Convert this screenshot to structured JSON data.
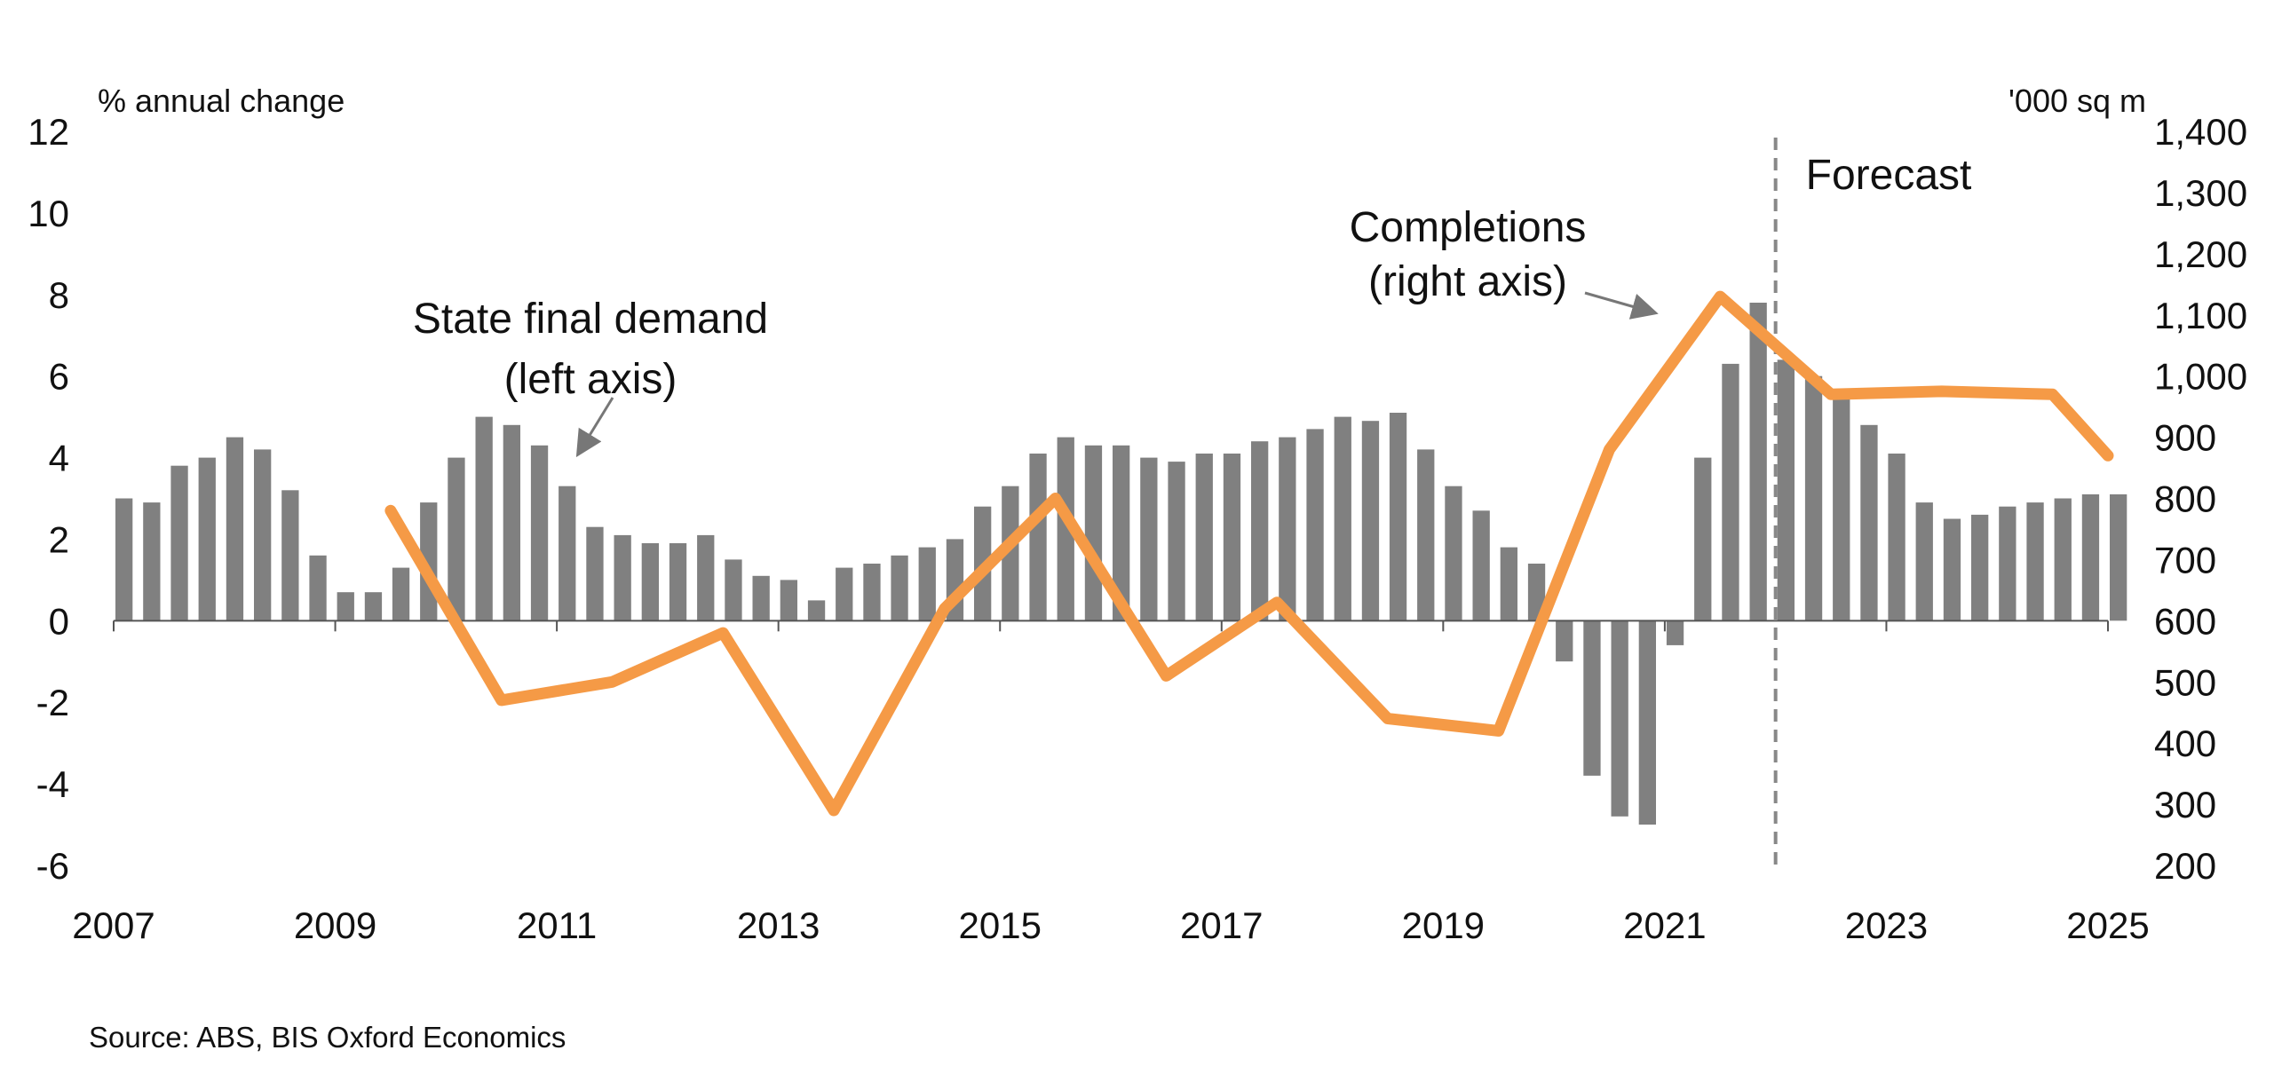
{
  "chart_data": {
    "type": "bar",
    "left_axis_label": "% annual change",
    "right_axis_label": "'000 sq m",
    "y_left": {
      "min": -6,
      "max": 12,
      "ticks": [
        "12",
        "10",
        "8",
        "6",
        "4",
        "2",
        "0",
        "-2",
        "-4",
        "-6"
      ]
    },
    "y_right": {
      "min": 200,
      "max": 1400,
      "ticks": [
        "1,400",
        "1,300",
        "1,200",
        "1,100",
        "1,000",
        "900",
        "800",
        "700",
        "600",
        "500",
        "400",
        "300",
        "200"
      ]
    },
    "x_axis": {
      "min": 2007,
      "max": 2025,
      "ticks": [
        "2007",
        "2009",
        "2011",
        "2013",
        "2015",
        "2017",
        "2019",
        "2021",
        "2023",
        "2025"
      ]
    },
    "forecast_start": 2022.0,
    "forecast_label": "Forecast",
    "series": [
      {
        "name": "State final demand",
        "axis": "left",
        "kind": "bar",
        "color": "#808080",
        "x": [
          2007.0,
          2007.25,
          2007.5,
          2007.75,
          2008.0,
          2008.25,
          2008.5,
          2008.75,
          2009.0,
          2009.25,
          2009.5,
          2009.75,
          2010.0,
          2010.25,
          2010.5,
          2010.75,
          2011.0,
          2011.25,
          2011.5,
          2011.75,
          2012.0,
          2012.25,
          2012.5,
          2012.75,
          2013.0,
          2013.25,
          2013.5,
          2013.75,
          2014.0,
          2014.25,
          2014.5,
          2014.75,
          2015.0,
          2015.25,
          2015.5,
          2015.75,
          2016.0,
          2016.25,
          2016.5,
          2016.75,
          2017.0,
          2017.25,
          2017.5,
          2017.75,
          2018.0,
          2018.25,
          2018.5,
          2018.75,
          2019.0,
          2019.25,
          2019.5,
          2019.75,
          2020.0,
          2020.25,
          2020.5,
          2020.75,
          2021.0,
          2021.25,
          2021.5,
          2021.75,
          2022.0,
          2022.25,
          2022.5,
          2022.75,
          2023.0,
          2023.25,
          2023.5,
          2023.75,
          2024.0,
          2024.25,
          2024.5,
          2024.75,
          2025.0
        ],
        "values": [
          3.0,
          2.9,
          3.8,
          4.0,
          4.5,
          4.2,
          3.2,
          1.6,
          0.7,
          0.7,
          1.3,
          2.9,
          4.0,
          5.0,
          4.8,
          4.3,
          3.3,
          2.3,
          2.1,
          1.9,
          1.9,
          2.1,
          1.5,
          1.1,
          1.0,
          0.5,
          1.3,
          1.4,
          1.6,
          1.8,
          2.0,
          2.8,
          3.3,
          4.1,
          4.5,
          4.3,
          4.3,
          4.0,
          3.9,
          4.1,
          4.1,
          4.4,
          4.5,
          4.7,
          5.0,
          4.9,
          5.1,
          4.2,
          3.3,
          2.7,
          1.8,
          1.4,
          -1.0,
          -3.8,
          -4.8,
          -5.0,
          -0.6,
          4.0,
          6.3,
          7.8,
          6.4,
          6.0,
          5.5,
          4.8,
          4.1,
          2.9,
          2.5,
          2.6,
          2.8,
          2.9,
          3.0,
          3.1,
          3.1
        ]
      },
      {
        "name": "Completions",
        "axis": "right",
        "kind": "line",
        "color": "#f59a46",
        "x": [
          2009.5,
          2010.5,
          2011.5,
          2012.5,
          2013.5,
          2014.5,
          2015.5,
          2016.5,
          2017.5,
          2018.5,
          2019.5,
          2020.5,
          2021.5,
          2022.5,
          2023.5,
          2024.5,
          2025.0
        ],
        "values": [
          780,
          470,
          500,
          580,
          290,
          620,
          800,
          510,
          630,
          440,
          420,
          880,
          1130,
          970,
          975,
          970,
          870
        ]
      }
    ],
    "annotations": {
      "left_series_label": [
        "State final demand",
        "(left axis)"
      ],
      "right_series_label": [
        "Completions",
        "(right axis)"
      ]
    },
    "source": "Source: ABS, BIS Oxford Economics",
    "grid": false,
    "legend": "none (inline annotations)"
  }
}
